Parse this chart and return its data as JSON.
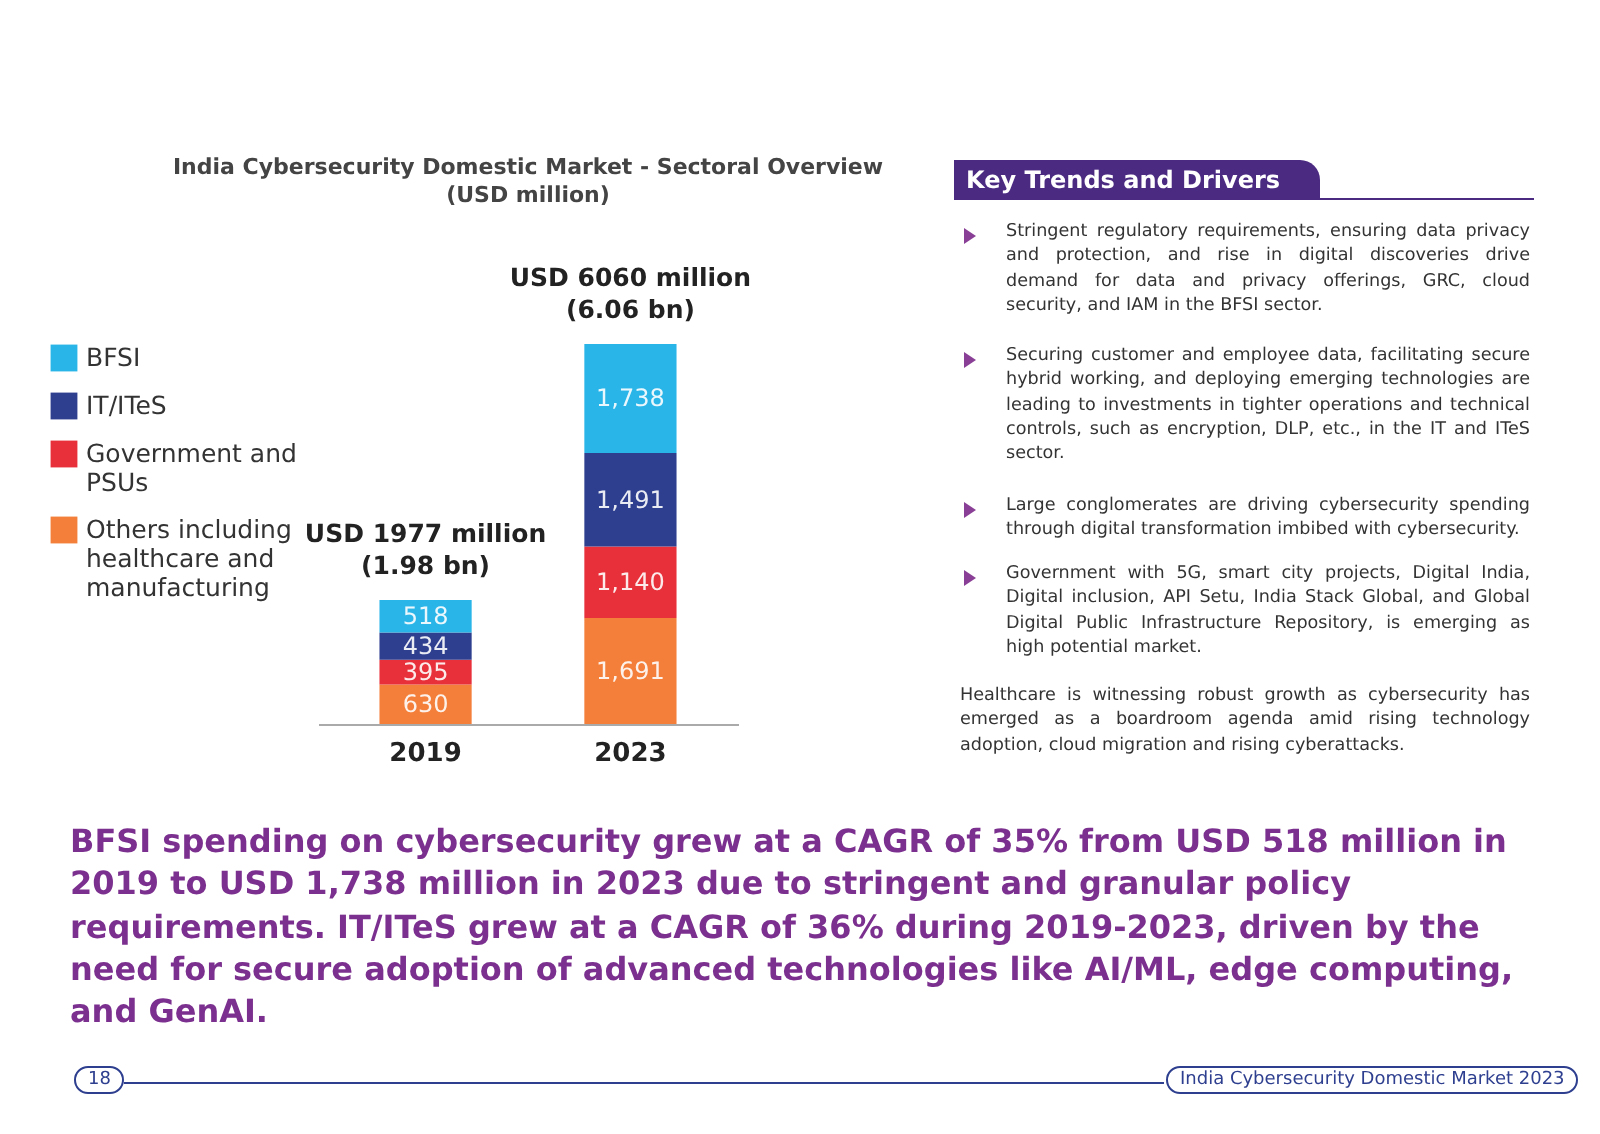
{
  "chart_data": {
    "type": "bar",
    "title": "India Cybersecurity Domestic Market - Sectoral Overview",
    "subtitle": "(USD million)",
    "stacked": true,
    "legend": "left",
    "tick_labels": "x",
    "categories": [
      "2019",
      "2023"
    ],
    "series": [
      {
        "name": "Others including healthcare and manufacturing",
        "color": "#f47f3a",
        "values": [
          630,
          1691
        ],
        "value_labels": [
          "630",
          "1,691"
        ]
      },
      {
        "name": "Government and PSUs",
        "color": "#e8303a",
        "values": [
          395,
          1140
        ],
        "value_labels": [
          "395",
          "1,140"
        ]
      },
      {
        "name": "IT/ITeS",
        "color": "#2e3f8f",
        "values": [
          434,
          1491
        ],
        "value_labels": [
          "434",
          "1,491"
        ]
      },
      {
        "name": "BFSI",
        "color": "#29b5e8",
        "values": [
          518,
          1738
        ],
        "value_labels": [
          "518",
          "1,738"
        ]
      }
    ],
    "totals": [
      "USD 1977 million\n(1.98 bn)",
      "USD 6060 million\n(6.06 bn)"
    ],
    "annotations": [
      "Key Trends and Drivers",
      "Stringent regulatory requirements, ensuring data privacy and protection, and rise in digital discoveries drive demand for data and privacy offerings, GRC, cloud security, and IAM in the BFSI sector.",
      "Securing customer and employee data, facilitating secure hybrid working, and deploying emerging technologies are leading to investments in tighter operations and technical controls, such as encryption, DLP, etc., in the IT and ITeS sector.",
      "Large conglomerates are  driving cybersecurity spending through digital transformation imbibed with cybersecurity.",
      "Government with 5G, smart city projects, Digital India, Digital inclusion, API Setu, India Stack Global, and Global Digital Public Infrastructure Repository, is emerging as high potential market.",
      "Healthcare is witnessing robust growth as cybersecurity has emerged as a boardroom agenda amid rising technology adoption, cloud migration and rising cyberattacks.",
      "BFSI spending on cybersecurity grew at a CAGR of 35% from USD 518 million in 2019 to USD 1,738 million in 2023 due to stringent and granular policy requirements. IT/ITeS grew at a CAGR of 36% during 2019-2023, driven by the need for secure adoption of advanced technologies like AI/ML, edge computing, and GenAI.",
      "18",
      "India Cybersecurity Domestic Market 2023"
    ]
  }
}
